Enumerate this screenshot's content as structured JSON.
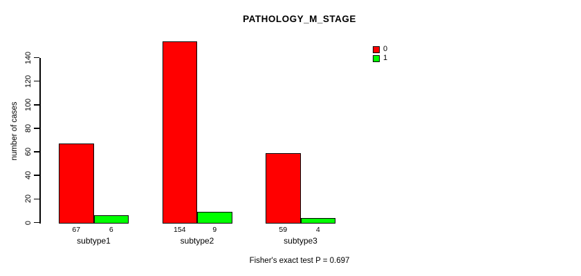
{
  "chart_data": {
    "type": "bar",
    "title": "PATHOLOGY_M_STAGE",
    "ylabel": "number of cases",
    "xlabel": "",
    "categories": [
      "subtype1",
      "subtype2",
      "subtype3"
    ],
    "series": [
      {
        "name": "0",
        "color": "#FF0000",
        "values": [
          67,
          154,
          59
        ]
      },
      {
        "name": "1",
        "color": "#00FF00",
        "values": [
          6,
          9,
          4
        ]
      }
    ],
    "yticks": [
      0,
      20,
      40,
      60,
      80,
      100,
      120,
      140
    ],
    "ylim": [
      0,
      157
    ],
    "grid": false,
    "legend_position": "top-right",
    "bar_value_labels_shown": true,
    "annotation": "Fisher's exact test P = 0.697",
    "colors": {
      "axis": "#000000",
      "text": "#000000",
      "background": "#FFFFFF"
    }
  }
}
